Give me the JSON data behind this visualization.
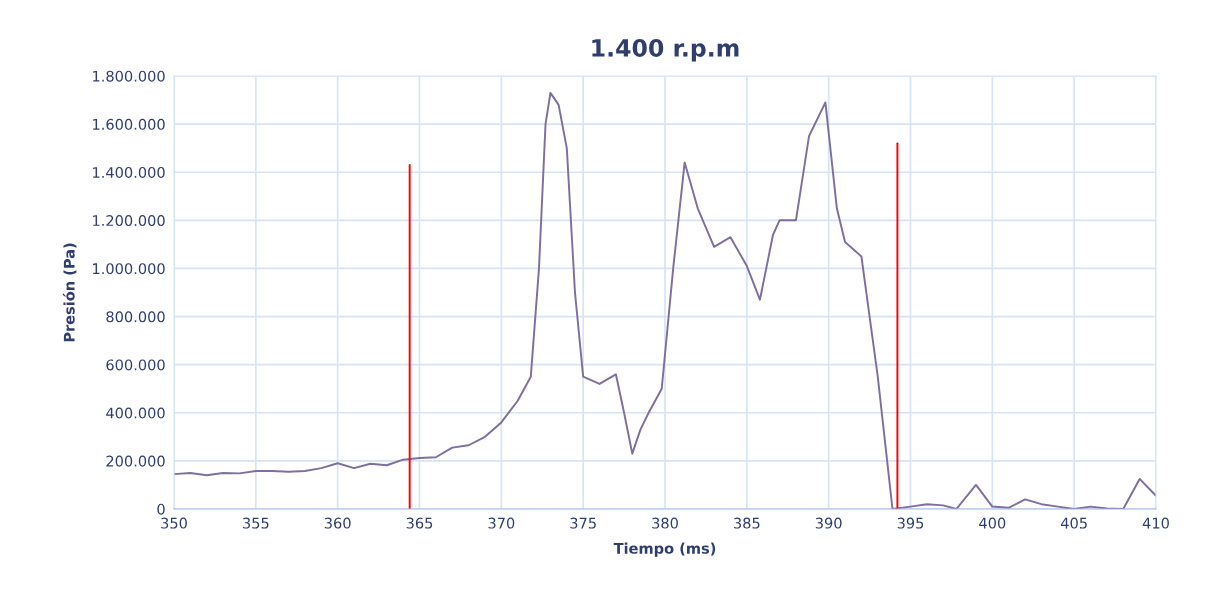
{
  "chart_data": {
    "type": "line",
    "title": "1.400 r.p.m",
    "xlabel": "Tiempo (ms)",
    "ylabel": "Presión (Pa)",
    "grid": true,
    "marker": "none",
    "line_style": "solid",
    "xlim": [
      350,
      410
    ],
    "xticks": [
      350,
      355,
      360,
      365,
      370,
      375,
      380,
      385,
      390,
      395,
      400,
      405,
      410
    ],
    "ylim": [
      0,
      1800000
    ],
    "yticks": [
      {
        "value": 0,
        "label": "0"
      },
      {
        "value": 200000,
        "label": "200.000"
      },
      {
        "value": 400000,
        "label": "400.000"
      },
      {
        "value": 600000,
        "label": "600.000"
      },
      {
        "value": 800000,
        "label": "800.000"
      },
      {
        "value": 1000000,
        "label": "1.000.000"
      },
      {
        "value": 1200000,
        "label": "1.200.000"
      },
      {
        "value": 1400000,
        "label": "1.400.000"
      },
      {
        "value": 1600000,
        "label": "1.600.000"
      },
      {
        "value": 1800000,
        "label": "1.800.000"
      }
    ],
    "series": [
      {
        "color": "#7f6f9f",
        "x": [
          350,
          351,
          352,
          353,
          354,
          355,
          356,
          357,
          358,
          359,
          360,
          361,
          362,
          363,
          364,
          365,
          366,
          367,
          368,
          369,
          370,
          371,
          371.8,
          372.3,
          372.7,
          373,
          373.5,
          374,
          374.5,
          375,
          376,
          377,
          377.5,
          378,
          378.5,
          379,
          379.8,
          380.5,
          381.2,
          382,
          383,
          384,
          385,
          385.8,
          386.6,
          387,
          388,
          388.8,
          389.8,
          390.5,
          391,
          392,
          393,
          393.9,
          395,
          396,
          397,
          397.8,
          399,
          400,
          401,
          402,
          403,
          404,
          405,
          406,
          407,
          408,
          409,
          410
        ],
        "values": [
          145000,
          150000,
          140000,
          150000,
          148000,
          158000,
          158000,
          155000,
          158000,
          170000,
          190000,
          170000,
          188000,
          182000,
          205000,
          212000,
          215000,
          255000,
          265000,
          300000,
          360000,
          450000,
          550000,
          1000000,
          1600000,
          1730000,
          1680000,
          1500000,
          900000,
          550000,
          520000,
          560000,
          400000,
          230000,
          330000,
          400000,
          500000,
          1000000,
          1440000,
          1250000,
          1090000,
          1130000,
          1010000,
          870000,
          1140000,
          1200000,
          1200000,
          1550000,
          1690000,
          1250000,
          1110000,
          1050000,
          550000,
          0,
          10000,
          20000,
          15000,
          0,
          100000,
          10000,
          5000,
          40000,
          20000,
          10000,
          0,
          10000,
          2000,
          0,
          125000,
          55000
        ]
      },
      {
        "color": "#ff0000",
        "x": [
          364.4,
          364.4
        ],
        "values": [
          0,
          1430000
        ]
      },
      {
        "color": "#ff0000",
        "x": [
          394.2,
          394.2
        ],
        "values": [
          0,
          1520000
        ]
      }
    ]
  }
}
